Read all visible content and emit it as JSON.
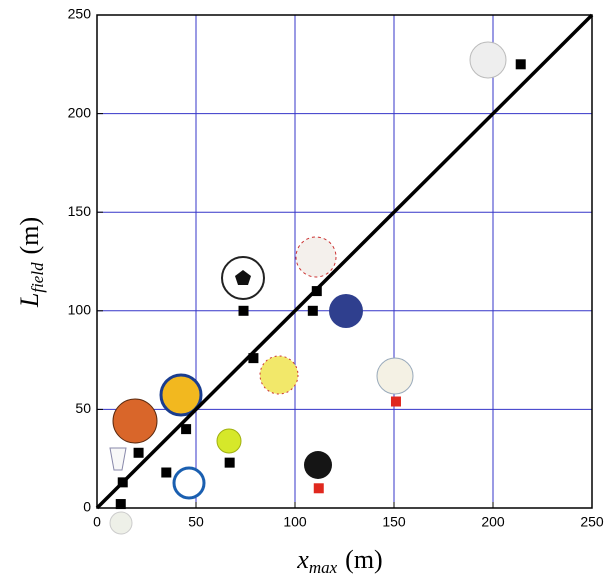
{
  "chart_data": {
    "type": "scatter",
    "xlabel": {
      "symbol": "x",
      "subscript": "max",
      "unit": "(m)"
    },
    "ylabel": {
      "symbol": "L",
      "subscript": "field",
      "unit": "(m)"
    },
    "xlim": [
      0,
      250
    ],
    "ylim": [
      0,
      250
    ],
    "xticks": [
      0,
      50,
      100,
      150,
      200,
      250
    ],
    "yticks": [
      0,
      50,
      100,
      150,
      200,
      250
    ],
    "grid": true,
    "grid_color": "#3535c8",
    "series": [
      {
        "color": "#000000",
        "x": [
          214,
          111,
          109,
          74,
          79,
          45,
          67,
          35,
          21,
          13,
          12
        ],
        "values": [
          225,
          110,
          100,
          100,
          76,
          40,
          23,
          18,
          28,
          13,
          2
        ]
      },
      {
        "color": "#e0281e",
        "x": [
          151,
          112
        ],
        "values": [
          54,
          10
        ]
      },
      {
        "type": "line",
        "color": "#000000",
        "x": [
          0,
          250
        ],
        "values": [
          0,
          250
        ]
      }
    ]
  }
}
